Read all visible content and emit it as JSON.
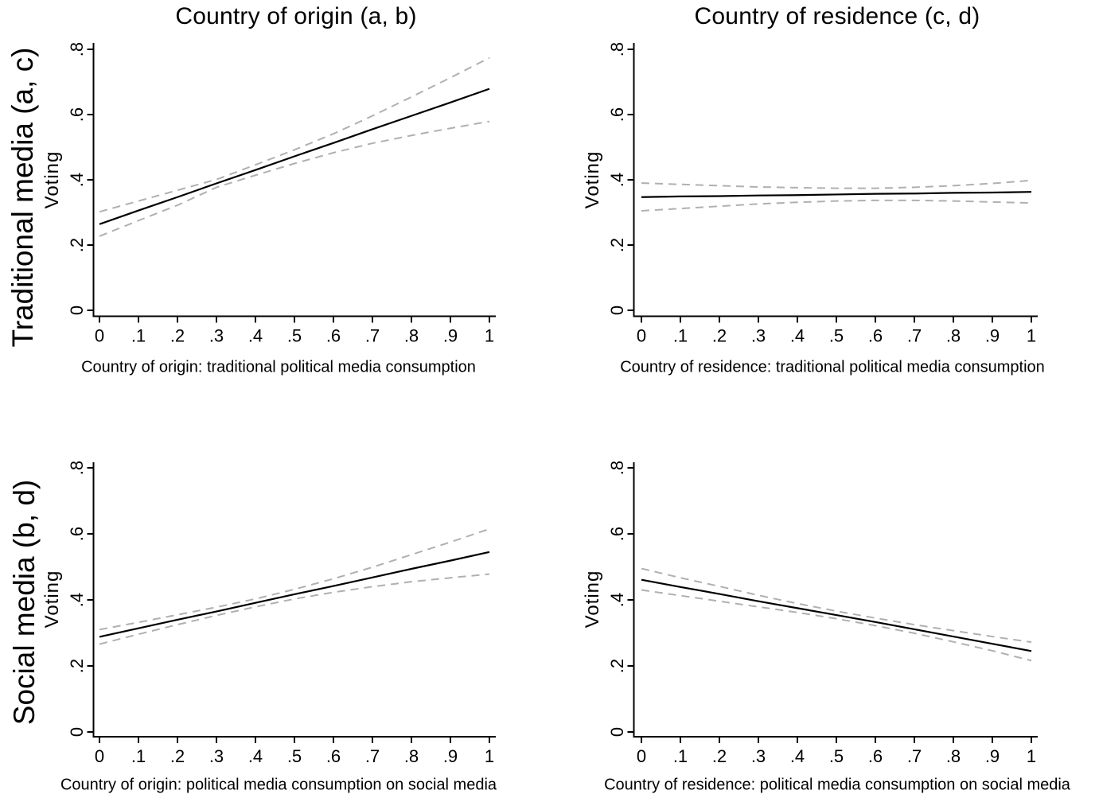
{
  "figure": {
    "column_titles": [
      "Country of origin (a, b)",
      "Country of residence (c, d)"
    ],
    "row_labels": [
      "Traditional media (a, c)",
      "Social media (b, d)"
    ]
  },
  "colors": {
    "line": "#000000",
    "ci": "#b0b0b0",
    "axis": "#000000",
    "text": "#000000",
    "background": "#ffffff"
  },
  "chart_data": [
    {
      "id": "origin-traditional",
      "type": "line",
      "title": "Country of origin (a, b)",
      "xlabel": "Country of origin: traditional political media consumption",
      "ylabel": "Voting",
      "xlim": [
        0,
        1
      ],
      "ylim": [
        0,
        0.8
      ],
      "x_ticks": [
        "0",
        ".1",
        ".2",
        ".3",
        ".4",
        ".5",
        ".6",
        ".7",
        ".8",
        ".9",
        "1"
      ],
      "y_ticks": [
        "0",
        ".2",
        ".4",
        ".6",
        ".8"
      ],
      "grid": false,
      "x": [
        0,
        0.1,
        0.2,
        0.3,
        0.4,
        0.5,
        0.6,
        0.7,
        0.8,
        0.9,
        1
      ],
      "series": [
        {
          "name": "prediction",
          "style": "solid",
          "values": [
            0.264,
            0.306,
            0.347,
            0.389,
            0.43,
            0.472,
            0.513,
            0.555,
            0.596,
            0.637,
            0.679
          ]
        },
        {
          "name": "ci-upper",
          "style": "dashed",
          "values": [
            0.302,
            0.335,
            0.368,
            0.401,
            0.446,
            0.492,
            0.541,
            0.596,
            0.654,
            0.713,
            0.774
          ]
        },
        {
          "name": "ci-lower",
          "style": "dashed",
          "values": [
            0.227,
            0.275,
            0.322,
            0.377,
            0.414,
            0.45,
            0.483,
            0.512,
            0.536,
            0.558,
            0.579
          ]
        }
      ]
    },
    {
      "id": "residence-traditional",
      "type": "line",
      "title": "Country of residence (c, d)",
      "xlabel": "Country of residence: traditional political media consumption",
      "ylabel": "Voting",
      "xlim": [
        0,
        1
      ],
      "ylim": [
        0,
        0.8
      ],
      "x_ticks": [
        "0",
        ".1",
        ".2",
        ".3",
        ".4",
        ".5",
        ".6",
        ".7",
        ".8",
        ".9",
        "1"
      ],
      "y_ticks": [
        "0",
        ".2",
        ".4",
        ".6",
        ".8"
      ],
      "grid": false,
      "x": [
        0,
        0.1,
        0.2,
        0.3,
        0.4,
        0.5,
        0.6,
        0.7,
        0.8,
        0.9,
        1
      ],
      "series": [
        {
          "name": "prediction",
          "style": "solid",
          "values": [
            0.347,
            0.349,
            0.35,
            0.352,
            0.353,
            0.355,
            0.357,
            0.358,
            0.36,
            0.361,
            0.363
          ]
        },
        {
          "name": "ci-upper",
          "style": "dashed",
          "values": [
            0.39,
            0.386,
            0.382,
            0.378,
            0.376,
            0.374,
            0.374,
            0.377,
            0.382,
            0.389,
            0.398
          ]
        },
        {
          "name": "ci-lower",
          "style": "dashed",
          "values": [
            0.305,
            0.312,
            0.319,
            0.326,
            0.331,
            0.335,
            0.337,
            0.337,
            0.335,
            0.332,
            0.329
          ]
        }
      ]
    },
    {
      "id": "origin-social",
      "type": "line",
      "title": "Country of origin (a, b)",
      "xlabel": "Country of origin: political media consumption on social media",
      "ylabel": "Voting",
      "xlim": [
        0,
        1
      ],
      "ylim": [
        0,
        0.8
      ],
      "x_ticks": [
        "0",
        ".1",
        ".2",
        ".3",
        ".4",
        ".5",
        ".6",
        ".7",
        ".8",
        ".9",
        "1"
      ],
      "y_ticks": [
        "0",
        ".2",
        ".4",
        ".6",
        ".8"
      ],
      "grid": false,
      "x": [
        0,
        0.1,
        0.2,
        0.3,
        0.4,
        0.5,
        0.6,
        0.7,
        0.8,
        0.9,
        1
      ],
      "series": [
        {
          "name": "prediction",
          "style": "solid",
          "values": [
            0.288,
            0.314,
            0.34,
            0.365,
            0.391,
            0.417,
            0.442,
            0.468,
            0.494,
            0.519,
            0.545
          ]
        },
        {
          "name": "ci-upper",
          "style": "dashed",
          "values": [
            0.31,
            0.332,
            0.355,
            0.378,
            0.403,
            0.432,
            0.464,
            0.499,
            0.537,
            0.575,
            0.615
          ]
        },
        {
          "name": "ci-lower",
          "style": "dashed",
          "values": [
            0.266,
            0.296,
            0.325,
            0.353,
            0.379,
            0.403,
            0.423,
            0.44,
            0.455,
            0.467,
            0.478
          ]
        }
      ]
    },
    {
      "id": "residence-social",
      "type": "line",
      "title": "Country of residence (c, d)",
      "xlabel": "Country of residence: political media consumption on social media",
      "ylabel": "Voting",
      "xlim": [
        0,
        1
      ],
      "ylim": [
        0,
        0.8
      ],
      "x_ticks": [
        "0",
        ".1",
        ".2",
        ".3",
        ".4",
        ".5",
        ".6",
        ".7",
        ".8",
        ".9",
        "1"
      ],
      "y_ticks": [
        "0",
        ".2",
        ".4",
        ".6",
        ".8"
      ],
      "grid": false,
      "x": [
        0,
        0.1,
        0.2,
        0.3,
        0.4,
        0.5,
        0.6,
        0.7,
        0.8,
        0.9,
        1
      ],
      "series": [
        {
          "name": "prediction",
          "style": "solid",
          "values": [
            0.461,
            0.439,
            0.418,
            0.396,
            0.375,
            0.354,
            0.333,
            0.311,
            0.289,
            0.267,
            0.245
          ]
        },
        {
          "name": "ci-upper",
          "style": "dashed",
          "values": [
            0.495,
            0.467,
            0.441,
            0.414,
            0.389,
            0.366,
            0.345,
            0.325,
            0.307,
            0.289,
            0.272
          ]
        },
        {
          "name": "ci-lower",
          "style": "dashed",
          "values": [
            0.43,
            0.413,
            0.396,
            0.379,
            0.362,
            0.343,
            0.322,
            0.299,
            0.273,
            0.246,
            0.216
          ]
        }
      ]
    }
  ]
}
